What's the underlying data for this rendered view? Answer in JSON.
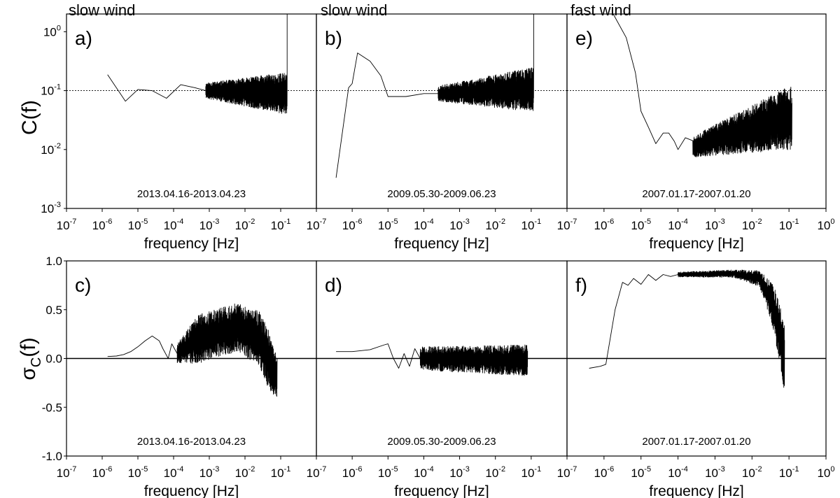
{
  "figure": {
    "headers": [
      "slow wind",
      "slow wind",
      "fast wind"
    ],
    "top_ylabel": "C(f)",
    "bottom_ylabel_main": "σ",
    "bottom_ylabel_sub": "C",
    "bottom_ylabel_tail": "(f)",
    "xlabel": "frequency [Hz]",
    "x_tick_labels": [
      {
        "base": "10",
        "exp": "-7"
      },
      {
        "base": "10",
        "exp": "-6"
      },
      {
        "base": "10",
        "exp": "-5"
      },
      {
        "base": "10",
        "exp": "-4"
      },
      {
        "base": "10",
        "exp": "-3"
      },
      {
        "base": "10",
        "exp": "-2"
      },
      {
        "base": "10",
        "exp": "-1"
      },
      {
        "base": "10",
        "exp": "0"
      }
    ],
    "top_y_tick_labels": [
      {
        "base": "10",
        "exp": "0"
      },
      {
        "base": "10",
        "exp": "-1"
      },
      {
        "base": "10",
        "exp": "-2"
      },
      {
        "base": "10",
        "exp": "-3"
      }
    ],
    "bottom_y_tick_labels": [
      "1.0",
      "0.5",
      "0.0",
      "-0.5",
      "-1.0"
    ],
    "colors": {
      "line": "#000000",
      "axis": "#000000",
      "background": "#ffffff"
    }
  },
  "chart_data": [
    {
      "type": "line",
      "panel": "a)",
      "row": 0,
      "col": 0,
      "title": "slow wind",
      "date_range": "2013.04.16-2013.04.23",
      "ylabel": "C(f)",
      "xlabel": "frequency [Hz]",
      "xscale": "log",
      "yscale": "log",
      "xlim": [
        1e-07,
        1
      ],
      "ylim": [
        0.001,
        2
      ],
      "reference_line": 0.1,
      "smooth": {
        "x": [
          -5.85,
          -5.35,
          -5.0,
          -4.6,
          -4.2,
          -3.8,
          -3.4,
          -3.1
        ],
        "y": [
          -0.73,
          -1.18,
          -0.98,
          -1.0,
          -1.13,
          -0.9,
          -0.95,
          -1.0
        ]
      },
      "noisy": {
        "x_start": -3.1,
        "x_end": -0.82,
        "base_start": -1.0,
        "base_end": -1.05,
        "amp_start": 0.13,
        "amp_end": 0.36,
        "points": 900
      },
      "spike_end": {
        "x": -0.82,
        "y": 0.3
      },
      "seed": 11
    },
    {
      "type": "line",
      "panel": "b)",
      "row": 0,
      "col": 1,
      "title": "slow wind",
      "date_range": "2009.05.30-2009.06.23",
      "ylabel": "C(f)",
      "xlabel": "frequency [Hz]",
      "xscale": "log",
      "yscale": "log",
      "xlim": [
        1e-07,
        1
      ],
      "ylim": [
        0.001,
        2
      ],
      "reference_line": 0.1,
      "smooth": {
        "x": [
          -6.45,
          -6.1,
          -6.0,
          -5.85,
          -5.5,
          -5.2,
          -5.0,
          -4.5,
          -4.0,
          -3.6
        ],
        "y": [
          -2.48,
          -0.95,
          -0.88,
          -0.36,
          -0.5,
          -0.75,
          -1.1,
          -1.1,
          -1.05,
          -1.05
        ]
      },
      "noisy": {
        "x_start": -3.6,
        "x_end": -0.93,
        "base_start": -1.05,
        "base_end": -0.98,
        "amp_start": 0.13,
        "amp_end": 0.38,
        "points": 900
      },
      "spike_end": {
        "x": -0.93,
        "y": 0.3
      },
      "seed": 23
    },
    {
      "type": "line",
      "panel": "e)",
      "row": 0,
      "col": 2,
      "title": "fast wind",
      "date_range": "2007.01.17-2007.01.20",
      "ylabel": "C(f)",
      "xlabel": "frequency [Hz]",
      "xscale": "log",
      "yscale": "log",
      "xlim": [
        1e-07,
        1
      ],
      "ylim": [
        0.001,
        2
      ],
      "reference_line": 0.1,
      "smooth": {
        "x": [
          -5.75,
          -5.4,
          -5.15,
          -5.0,
          -4.8,
          -4.6,
          -4.4,
          -4.25,
          -4.1,
          -4.0,
          -3.8,
          -3.6
        ],
        "y": [
          0.3,
          -0.1,
          -0.7,
          -1.35,
          -1.62,
          -1.9,
          -1.72,
          -1.72,
          -1.86,
          -2.0,
          -1.8,
          -1.85
        ]
      },
      "noisy": {
        "x_start": -3.6,
        "x_end": -0.92,
        "base_start": -1.95,
        "base_end": -1.45,
        "amp_start": 0.18,
        "amp_end": 0.55,
        "points": 900
      },
      "spike_end": null,
      "seed": 37
    },
    {
      "type": "line",
      "panel": "c)",
      "row": 1,
      "col": 0,
      "title": "",
      "date_range": "2013.04.16-2013.04.23",
      "ylabel": "σC(f)",
      "xlabel": "frequency [Hz]",
      "xscale": "log",
      "yscale": "linear",
      "xlim": [
        1e-07,
        1
      ],
      "ylim": [
        -1,
        1
      ],
      "reference_line": 0.0,
      "smooth": {
        "x": [
          -5.85,
          -5.6,
          -5.4,
          -5.2,
          -5.0,
          -4.8,
          -4.6,
          -4.4,
          -4.3,
          -4.15,
          -4.05,
          -3.9
        ],
        "y": [
          0.02,
          0.025,
          0.04,
          0.07,
          0.12,
          0.18,
          0.23,
          0.18,
          0.1,
          0.0,
          0.15,
          0.05
        ]
      },
      "noisy": {
        "x_start": -3.9,
        "x_end": -1.1,
        "base_start": 0.1,
        "base_end": 0.1,
        "amp_start": 0.15,
        "amp_end": 0.25,
        "points": 800,
        "envelope": [
          [
            -3.9,
            0.05,
            0.1
          ],
          [
            -3.3,
            0.2,
            0.25
          ],
          [
            -2.2,
            0.32,
            0.25
          ],
          [
            -1.6,
            0.2,
            0.28
          ],
          [
            -1.35,
            0.0,
            0.3
          ],
          [
            -1.1,
            -0.22,
            0.22
          ]
        ]
      },
      "spike_end": null,
      "seed": 51
    },
    {
      "type": "line",
      "panel": "d)",
      "row": 1,
      "col": 1,
      "title": "",
      "date_range": "2009.05.30-2009.06.23",
      "ylabel": "σC(f)",
      "xlabel": "frequency [Hz]",
      "xscale": "log",
      "yscale": "linear",
      "xlim": [
        1e-07,
        1
      ],
      "ylim": [
        -1,
        1
      ],
      "reference_line": 0.0,
      "smooth": {
        "x": [
          -6.45,
          -6.0,
          -5.5,
          -5.1,
          -5.0,
          -4.85,
          -4.7,
          -4.55,
          -4.4,
          -4.25,
          -4.1
        ],
        "y": [
          0.07,
          0.07,
          0.09,
          0.14,
          0.15,
          0.0,
          -0.1,
          0.05,
          -0.08,
          0.1,
          0.0
        ]
      },
      "noisy": {
        "x_start": -4.1,
        "x_end": -1.1,
        "base_start": 0.0,
        "base_end": -0.02,
        "amp_start": 0.12,
        "amp_end": 0.16,
        "points": 800
      },
      "spike_end": null,
      "seed": 67
    },
    {
      "type": "line",
      "panel": "f)",
      "row": 1,
      "col": 2,
      "title": "",
      "date_range": "2007.01.17-2007.01.20",
      "ylabel": "σC(f)",
      "xlabel": "frequency [Hz]",
      "xscale": "log",
      "yscale": "linear",
      "xlim": [
        1e-07,
        1
      ],
      "ylim": [
        -1,
        1
      ],
      "reference_line": 0.0,
      "smooth": {
        "x": [
          -6.4,
          -6.1,
          -5.95,
          -5.7,
          -5.5,
          -5.35,
          -5.2,
          -5.0,
          -4.8,
          -4.6,
          -4.4,
          -4.2,
          -4.0
        ],
        "y": [
          -0.1,
          -0.08,
          -0.06,
          0.5,
          0.78,
          0.75,
          0.82,
          0.76,
          0.86,
          0.8,
          0.86,
          0.84,
          0.86
        ]
      },
      "noisy": {
        "x_start": -4.0,
        "x_end": -1.12,
        "base_start": 0.86,
        "base_end": 0.0,
        "amp_start": 0.025,
        "amp_end": 0.35,
        "points": 700,
        "envelope": [
          [
            -4.0,
            0.86,
            0.025
          ],
          [
            -2.5,
            0.87,
            0.04
          ],
          [
            -1.8,
            0.82,
            0.08
          ],
          [
            -1.5,
            0.6,
            0.2
          ],
          [
            -1.3,
            0.35,
            0.3
          ],
          [
            -1.12,
            0.0,
            0.35
          ]
        ]
      },
      "spike_end": null,
      "seed": 89
    }
  ]
}
